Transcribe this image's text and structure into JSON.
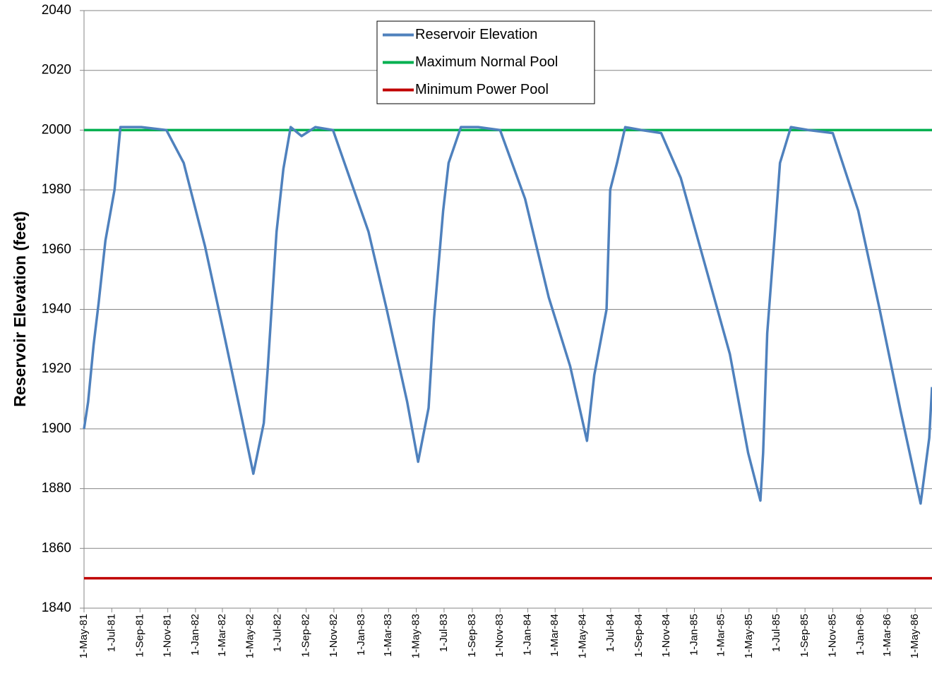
{
  "chart_data": {
    "type": "line",
    "y_label": "Reservoir Elevation (feet)",
    "xlim": [
      "1981-05-01",
      "1986-06-07"
    ],
    "ylim": [
      1840,
      2040
    ],
    "yticks": [
      1840,
      1860,
      1880,
      1900,
      1920,
      1940,
      1960,
      1980,
      2000,
      2020,
      2040
    ],
    "xticks": [
      {
        "value": "1981-05-01",
        "label": "1-May-81"
      },
      {
        "value": "1981-07-01",
        "label": "1-Jul-81"
      },
      {
        "value": "1981-09-01",
        "label": "1-Sep-81"
      },
      {
        "value": "1981-11-01",
        "label": "1-Nov-81"
      },
      {
        "value": "1982-01-01",
        "label": "1-Jan-82"
      },
      {
        "value": "1982-03-01",
        "label": "1-Mar-82"
      },
      {
        "value": "1982-05-01",
        "label": "1-May-82"
      },
      {
        "value": "1982-07-01",
        "label": "1-Jul-82"
      },
      {
        "value": "1982-09-01",
        "label": "1-Sep-82"
      },
      {
        "value": "1982-11-01",
        "label": "1-Nov-82"
      },
      {
        "value": "1983-01-01",
        "label": "1-Jan-83"
      },
      {
        "value": "1983-03-01",
        "label": "1-Mar-83"
      },
      {
        "value": "1983-05-01",
        "label": "1-May-83"
      },
      {
        "value": "1983-07-01",
        "label": "1-Jul-83"
      },
      {
        "value": "1983-09-01",
        "label": "1-Sep-83"
      },
      {
        "value": "1983-11-01",
        "label": "1-Nov-83"
      },
      {
        "value": "1984-01-01",
        "label": "1-Jan-84"
      },
      {
        "value": "1984-03-01",
        "label": "1-Mar-84"
      },
      {
        "value": "1984-05-01",
        "label": "1-May-84"
      },
      {
        "value": "1984-07-01",
        "label": "1-Jul-84"
      },
      {
        "value": "1984-09-01",
        "label": "1-Sep-84"
      },
      {
        "value": "1984-11-01",
        "label": "1-Nov-84"
      },
      {
        "value": "1985-01-01",
        "label": "1-Jan-85"
      },
      {
        "value": "1985-03-01",
        "label": "1-Mar-85"
      },
      {
        "value": "1985-05-01",
        "label": "1-May-85"
      },
      {
        "value": "1985-07-01",
        "label": "1-Jul-85"
      },
      {
        "value": "1985-09-01",
        "label": "1-Sep-85"
      },
      {
        "value": "1985-11-01",
        "label": "1-Nov-85"
      },
      {
        "value": "1986-01-01",
        "label": "1-Jan-86"
      },
      {
        "value": "1986-03-01",
        "label": "1-Mar-86"
      },
      {
        "value": "1986-05-01",
        "label": "1-May-86"
      }
    ],
    "grid": true,
    "legend": "top",
    "series": [
      {
        "name": "Reservoir Elevation",
        "color": "#4f81bd",
        "x": [
          "1981-05-01",
          "1981-05-10",
          "1981-05-22",
          "1981-06-02",
          "1981-06-17",
          "1981-07-07",
          "1981-07-20",
          "1981-09-04",
          "1981-10-29",
          "1981-12-06",
          "1982-01-22",
          "1982-03-07",
          "1982-04-12",
          "1982-05-08",
          "1982-05-31",
          "1982-06-09",
          "1982-06-28",
          "1982-07-13",
          "1982-07-29",
          "1982-08-22",
          "1982-09-21",
          "1982-10-30",
          "1983-01-16",
          "1983-02-25",
          "1983-04-11",
          "1983-05-05",
          "1983-05-28",
          "1983-06-09",
          "1983-06-29",
          "1983-07-11",
          "1983-08-07",
          "1983-09-14",
          "1983-11-01",
          "1983-12-26",
          "1984-02-16",
          "1984-04-03",
          "1984-05-10",
          "1984-05-26",
          "1984-06-22",
          "1984-06-30",
          "1984-07-15",
          "1984-08-02",
          "1984-09-07",
          "1984-10-20",
          "1984-12-02",
          "1985-01-26",
          "1985-03-20",
          "1985-04-29",
          "1985-05-26",
          "1985-06-01",
          "1985-06-10",
          "1985-06-27",
          "1985-07-08",
          "1985-08-01",
          "1985-09-09",
          "1985-11-01",
          "1985-12-27",
          "1986-02-12",
          "1986-03-30",
          "1986-05-13",
          "1986-06-01",
          "1986-06-07"
        ],
        "values": [
          1900,
          1909,
          1928,
          1942,
          1963,
          1980,
          2001,
          2001,
          2000,
          1989,
          1961,
          1930,
          1904,
          1885,
          1902,
          1921,
          1966,
          1987,
          2001,
          1998,
          2001,
          2000,
          1966,
          1940,
          1909,
          1889,
          1907,
          1937,
          1973,
          1989,
          2001,
          2001,
          2000,
          1977,
          1944,
          1921,
          1896,
          1918,
          1940,
          1980,
          1989,
          2001,
          2000,
          1999,
          1984,
          1954,
          1925,
          1892,
          1876,
          1892,
          1932,
          1966,
          1989,
          2001,
          2000,
          1999,
          1973,
          1940,
          1906,
          1875,
          1897,
          1914
        ]
      },
      {
        "name": "Maximum Normal Pool",
        "color": "#00b050",
        "x": [
          "1981-05-01",
          "1986-06-07"
        ],
        "values": [
          2000,
          2000
        ]
      },
      {
        "name": "Minimum Power Pool",
        "color": "#c00000",
        "x": [
          "1981-05-01",
          "1986-06-07"
        ],
        "values": [
          1850,
          1850
        ]
      }
    ]
  }
}
